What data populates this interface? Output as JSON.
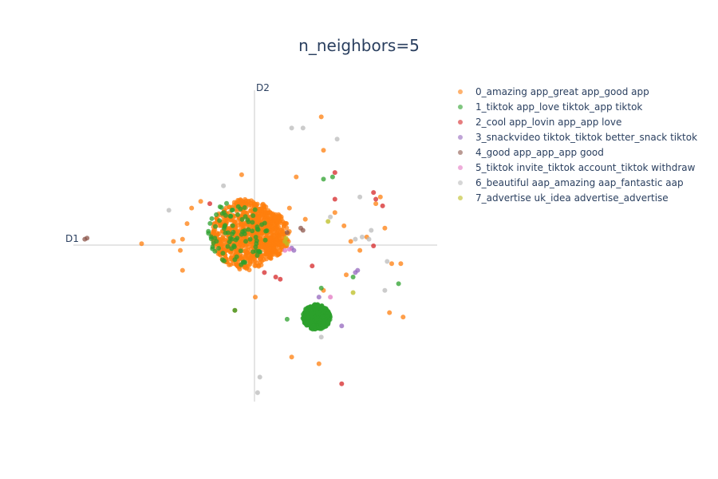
{
  "chart_data": {
    "type": "scatter",
    "title": "n_neighbors=5",
    "xlabel": "D1",
    "ylabel": "D2",
    "xlim": [
      -8,
      8
    ],
    "ylim": [
      -7,
      7
    ],
    "grid": false,
    "legend_position": "right",
    "series": [
      {
        "name": "0_amazing app_great app_good app",
        "color": "#ff7f0e",
        "clusters": [
          {
            "cx": -0.4,
            "cy": 0.5,
            "rx": 1.5,
            "ry": 1.6,
            "n": 700
          },
          {
            "cx": 0.6,
            "cy": 0.5,
            "rx": 0.9,
            "ry": 1.0,
            "n": 250
          }
        ],
        "points": [
          [
            -5.0,
            0.1
          ],
          [
            -3.6,
            0.2
          ],
          [
            -3.2,
            0.3
          ],
          [
            -3.0,
            1.0
          ],
          [
            -2.8,
            1.7
          ],
          [
            -3.3,
            -0.2
          ],
          [
            -3.2,
            -1.1
          ],
          [
            -2.4,
            2.0
          ],
          [
            -0.6,
            3.2
          ],
          [
            2.9,
            5.8
          ],
          [
            3.0,
            4.3
          ],
          [
            1.5,
            1.7
          ],
          [
            2.2,
            1.2
          ],
          [
            3.5,
            1.5
          ],
          [
            3.9,
            0.9
          ],
          [
            4.2,
            0.2
          ],
          [
            4.0,
            -1.3
          ],
          [
            5.3,
            1.9
          ],
          [
            5.5,
            2.2
          ],
          [
            5.7,
            0.8
          ],
          [
            6.0,
            -0.8
          ],
          [
            6.4,
            -0.8
          ],
          [
            5.9,
            -3.0
          ],
          [
            6.5,
            -3.2
          ],
          [
            4.9,
            0.4
          ],
          [
            4.6,
            -0.2
          ],
          [
            3.0,
            -2.0
          ],
          [
            2.8,
            -5.3
          ],
          [
            1.6,
            -5.0
          ],
          [
            0.0,
            -2.3
          ],
          [
            -0.9,
            -2.9
          ],
          [
            1.8,
            3.1
          ]
        ]
      },
      {
        "name": "1_tiktok app_love tiktok_app tiktok",
        "color": "#2ca02c",
        "clusters": [
          {
            "cx": 2.7,
            "cy": -3.2,
            "rx": 0.6,
            "ry": 0.55,
            "n": 500
          },
          {
            "cx": -0.8,
            "cy": 0.6,
            "rx": 1.3,
            "ry": 1.5,
            "n": 90
          }
        ],
        "points": [
          [
            -0.9,
            -2.9
          ],
          [
            1.4,
            -3.3
          ],
          [
            3.0,
            3.0
          ],
          [
            3.4,
            3.1
          ],
          [
            4.3,
            -1.4
          ],
          [
            6.3,
            -1.7
          ],
          [
            2.9,
            -1.9
          ]
        ]
      },
      {
        "name": "2_cool app_lovin app_app love",
        "color": "#d62728",
        "points": [
          [
            3.5,
            3.3
          ],
          [
            3.5,
            2.1
          ],
          [
            2.5,
            -0.9
          ],
          [
            -2.0,
            1.9
          ],
          [
            0.4,
            -1.2
          ],
          [
            0.9,
            -1.4
          ],
          [
            1.1,
            -1.5
          ],
          [
            5.2,
            2.4
          ],
          [
            5.3,
            2.1
          ],
          [
            5.6,
            1.8
          ],
          [
            5.2,
            0.0
          ],
          [
            3.8,
            -6.2
          ]
        ]
      },
      {
        "name": "3_snackvideo tiktok_tiktok better_snack tiktok",
        "color": "#9467bd",
        "points": [
          [
            4.4,
            -1.2
          ],
          [
            4.5,
            -1.1
          ],
          [
            3.8,
            -3.6
          ],
          [
            2.8,
            -2.3
          ],
          [
            1.6,
            -0.1
          ],
          [
            1.7,
            -0.2
          ]
        ]
      },
      {
        "name": "4_good app_app_app good",
        "color": "#8c564b",
        "points": [
          [
            -7.5,
            0.3
          ],
          [
            -7.4,
            0.35
          ],
          [
            2.0,
            0.8
          ],
          [
            2.1,
            0.7
          ],
          [
            1.4,
            0.6
          ]
        ]
      },
      {
        "name": "5_tiktok invite_tiktok account_tiktok withdraw",
        "color": "#e377c2",
        "points": [
          [
            1.3,
            -0.2
          ],
          [
            1.5,
            -0.15
          ],
          [
            3.3,
            -2.3
          ]
        ]
      },
      {
        "name": "6_beautiful aap_amazing aap_fantastic aap",
        "color": "#bbbbbb",
        "points": [
          [
            2.1,
            5.3
          ],
          [
            -1.4,
            2.7
          ],
          [
            -3.8,
            1.6
          ],
          [
            1.6,
            5.3
          ],
          [
            4.6,
            2.2
          ],
          [
            3.6,
            4.8
          ],
          [
            4.7,
            0.4
          ],
          [
            5.0,
            0.3
          ],
          [
            5.8,
            -0.7
          ],
          [
            5.7,
            -2.0
          ],
          [
            3.3,
            1.3
          ],
          [
            2.9,
            -4.1
          ],
          [
            0.2,
            -5.9
          ],
          [
            0.1,
            -6.6
          ],
          [
            4.4,
            0.3
          ],
          [
            5.1,
            0.7
          ]
        ]
      },
      {
        "name": "7_advertise uk_idea advertise_advertise",
        "color": "#bcbd22",
        "points": [
          [
            1.3,
            0.2
          ],
          [
            1.35,
            0.35
          ],
          [
            1.4,
            0.1
          ],
          [
            4.3,
            -2.1
          ],
          [
            3.2,
            1.1
          ]
        ]
      }
    ]
  }
}
